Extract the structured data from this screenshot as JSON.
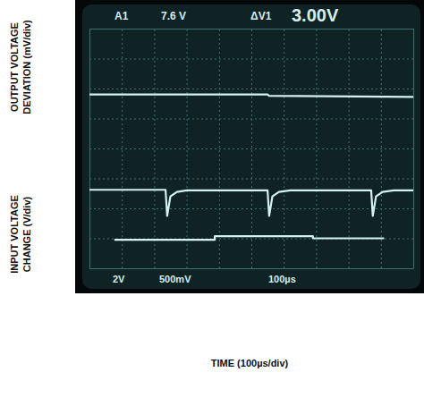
{
  "chart_data": {
    "type": "line",
    "xlabel": "TIME (100µs/div)",
    "ylabel": [
      "OUTPUT VOLTAGE DEVIATION (mV/div)",
      "INPUT VOLTAGE CHANGE (V/div)"
    ],
    "annotations": [
      "A1",
      "7.6 V",
      "ΔV1",
      "3.00V",
      "2V",
      "500mV",
      "100µs"
    ],
    "xlim": [
      0,
      10
    ],
    "ylim": [
      0,
      8
    ],
    "xticks": [
      0,
      1,
      2,
      3,
      4,
      5,
      6,
      7,
      8,
      9,
      10
    ],
    "yticks": [
      0,
      1,
      2,
      3,
      4,
      5,
      6,
      7,
      8
    ],
    "grid": true,
    "tick_labels": false,
    "series": [
      {
        "color": "#d6f2ef",
        "x": [
          0,
          5.5,
          5.55,
          10
        ],
        "values": [
          5.8,
          5.8,
          5.76,
          5.72
        ]
      },
      {
        "color": "#d6f2ef",
        "x": [
          0,
          2.35,
          2.4,
          2.5,
          2.7,
          3.0,
          5.5,
          5.55,
          5.65,
          5.85,
          6.2,
          8.7,
          8.75,
          8.85,
          9.05,
          9.4,
          10
        ],
        "values": [
          2.62,
          2.62,
          1.75,
          2.4,
          2.55,
          2.6,
          2.6,
          1.75,
          2.4,
          2.55,
          2.6,
          2.6,
          1.75,
          2.4,
          2.55,
          2.6,
          2.6
        ]
      },
      {
        "color": "#d6f2ef",
        "x": [
          0.77,
          3.87,
          3.87,
          6.9,
          6.9,
          9.1
        ],
        "values": [
          0.95,
          0.95,
          1.07,
          1.07,
          1.0,
          1.0
        ]
      }
    ]
  }
}
